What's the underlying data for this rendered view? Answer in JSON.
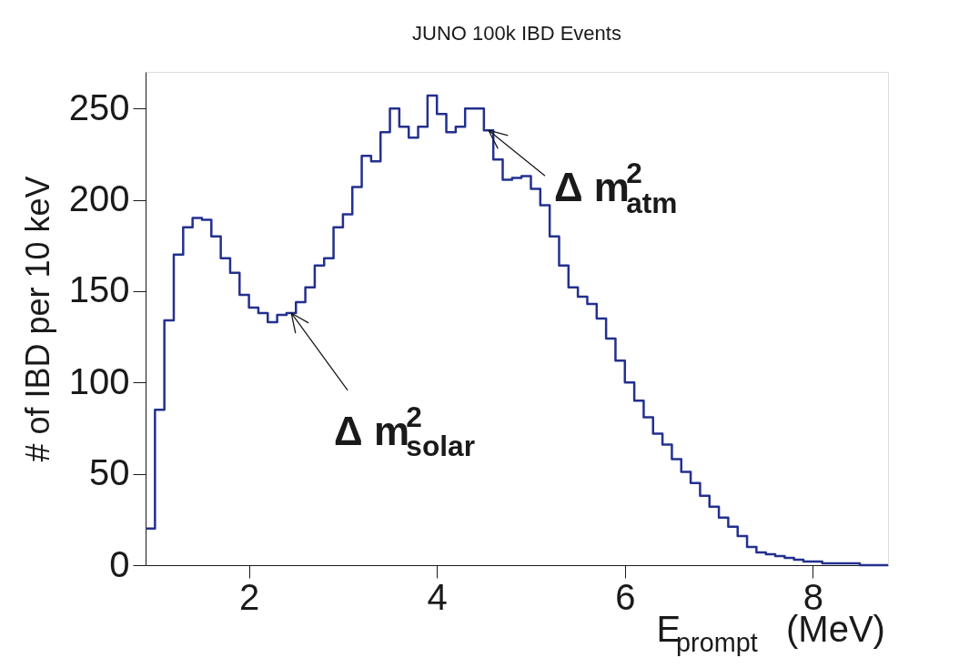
{
  "chart_data": {
    "type": "histogram",
    "title": "JUNO 100k IBD Events",
    "xlabel": "E$_{prompt}$ (MeV)",
    "ylabel": "# of IBD per 10 keV",
    "bins": [
      0.9,
      1.0,
      1.1,
      1.2,
      1.3,
      1.4,
      1.5,
      1.6,
      1.7,
      1.8,
      1.9,
      2.0,
      2.1,
      2.2,
      2.3,
      2.4,
      2.5,
      2.6,
      2.7,
      2.8,
      2.9,
      3.0,
      3.1,
      3.2,
      3.3,
      3.4,
      3.5,
      3.6,
      3.7,
      3.8,
      3.9,
      4.0,
      4.1,
      4.2,
      4.3,
      4.4,
      4.5,
      4.6,
      4.7,
      4.8,
      4.9,
      5.0,
      5.1,
      5.2,
      5.3,
      5.4,
      5.5,
      5.6,
      5.7,
      5.8,
      5.9,
      6.0,
      6.1,
      6.2,
      6.3,
      6.4,
      6.5,
      6.6,
      6.7,
      6.8,
      6.9,
      7.0,
      7.1,
      7.2,
      7.3,
      7.4,
      7.5,
      7.6,
      7.7,
      7.8,
      7.9,
      8.0,
      8.1,
      8.2,
      8.3,
      8.4,
      8.5,
      8.6,
      8.7,
      8.8
    ],
    "values": [
      20,
      85,
      134,
      170,
      185,
      190,
      189,
      180,
      168,
      160,
      148,
      141,
      138,
      133,
      137,
      138,
      144,
      152,
      164,
      168,
      185,
      192,
      207,
      224,
      221,
      237,
      250,
      240,
      234,
      240,
      257,
      247,
      237,
      240,
      250,
      250,
      238,
      222,
      211,
      212,
      213,
      206,
      197,
      180,
      164,
      152,
      147,
      143,
      135,
      124,
      112,
      100,
      90,
      81,
      72,
      66,
      58,
      51,
      45,
      38,
      32,
      26,
      21,
      16,
      10,
      7,
      6,
      5,
      4,
      3,
      2,
      2,
      1,
      1,
      1,
      1,
      0,
      0,
      0
    ],
    "color": "#23308f",
    "xlim": [
      0.9,
      8.8
    ],
    "ylim": [
      0,
      270
    ],
    "xticks": [
      2,
      4,
      6,
      8
    ],
    "yticks": [
      0,
      50,
      100,
      150,
      200,
      250
    ],
    "grid": false,
    "annotations": [
      {
        "text": "Δ m$^{2}$$_{atm}$",
        "x": 4.55,
        "y": 238
      },
      {
        "text": "Δ m$^{2}$$_{solar}$",
        "x": 2.45,
        "y": 138
      }
    ]
  }
}
